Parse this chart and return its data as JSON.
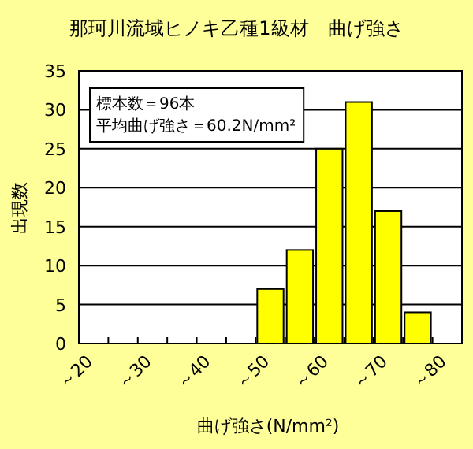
{
  "chart_data": {
    "type": "bar",
    "title": "那珂川流域ヒノキ乙種1級材　曲げ強さ",
    "xlabel": "曲げ強さ(N/mm²)",
    "ylabel": "出現数",
    "categories": [
      "～20",
      null,
      "～30",
      null,
      "～40",
      null,
      "～50",
      null,
      "～60",
      null,
      "～70",
      null,
      "～80"
    ],
    "values": [
      0,
      0,
      0,
      0,
      0,
      0,
      7,
      12,
      25,
      31,
      17,
      4,
      0
    ],
    "color": "#ffff00",
    "ylim": [
      0,
      35
    ],
    "yticks": [
      0,
      5,
      10,
      15,
      20,
      25,
      30,
      35
    ],
    "grid": "y",
    "annotations": [
      "標本数＝96本",
      "平均曲げ強さ＝60.2N/mm²"
    ]
  }
}
